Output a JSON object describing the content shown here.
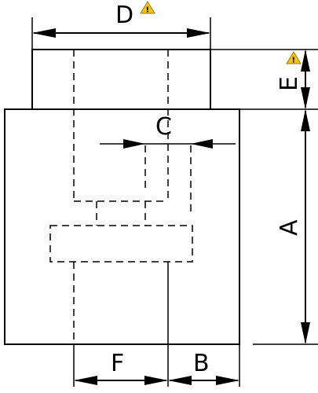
{
  "labels": {
    "D": "D",
    "E": "E",
    "C": "C",
    "A": "A",
    "F": "F",
    "B": "B"
  },
  "warning_glyph": "!"
}
